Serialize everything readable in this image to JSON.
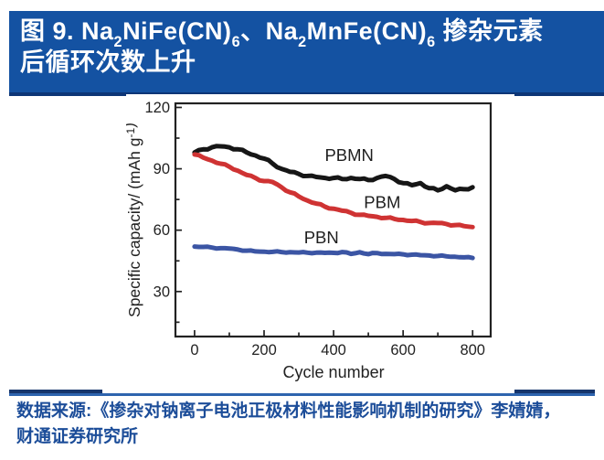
{
  "page": {
    "background": "#FFFFFF"
  },
  "header": {
    "bg_color": "#1452A2",
    "shadow_color": "#0D3576",
    "text_color": "#FFFFFF",
    "title_line1_segments": [
      {
        "t": "图 9. Na"
      },
      {
        "t": "2",
        "sub": true
      },
      {
        "t": "NiFe(CN)"
      },
      {
        "t": "6",
        "sub": true
      },
      {
        "t": "、Na"
      },
      {
        "t": "2",
        "sub": true
      },
      {
        "t": "MnFe(CN)"
      },
      {
        "t": "6",
        "sub": true
      },
      {
        "t": " 掺杂元素"
      }
    ],
    "title_line2": "后循环次数上升"
  },
  "chart_data": {
    "type": "line",
    "xlabel": "Cycle number",
    "ylabel_segments": [
      {
        "t": "Specific capacity/ (mAh g"
      },
      {
        "t": "-1",
        "sup": true
      },
      {
        "t": ")"
      }
    ],
    "xlim": [
      -55,
      852
    ],
    "ylim": [
      8,
      122
    ],
    "x_ticks_major": [
      0,
      200,
      400,
      600,
      800
    ],
    "x_ticks_minor": [
      100,
      300,
      500,
      700
    ],
    "y_ticks_major": [
      120,
      90,
      60,
      30
    ],
    "y_ticks_minor": [
      105,
      75,
      45,
      15
    ],
    "grid": false,
    "legend_position": "inline-labels",
    "axis_color": "#222222",
    "x": [
      0,
      25,
      50,
      75,
      100,
      125,
      150,
      175,
      200,
      225,
      250,
      275,
      300,
      325,
      350,
      375,
      400,
      425,
      450,
      475,
      500,
      525,
      550,
      575,
      600,
      625,
      650,
      675,
      700,
      725,
      750,
      775,
      800
    ],
    "series": [
      {
        "name": "PBMN",
        "color": "#161616",
        "label_x": 445,
        "label_y": 96.5,
        "values": [
          98,
          99.5,
          100.5,
          101,
          100.5,
          99.5,
          98,
          96.5,
          95,
          92.5,
          90,
          88.5,
          87.5,
          86.5,
          86,
          85.5,
          85.5,
          85,
          85.5,
          85,
          84.5,
          85.5,
          86.5,
          85,
          83,
          82,
          83,
          80.5,
          79.5,
          81.5,
          79.5,
          80,
          81
        ]
      },
      {
        "name": "PBM",
        "color": "#CF3333",
        "label_x": 540,
        "label_y": 73.5,
        "values": [
          97,
          95.5,
          94,
          92.5,
          91,
          89,
          87,
          85.5,
          84,
          83.5,
          81,
          78.5,
          76.5,
          74.5,
          73,
          71.5,
          70.5,
          69.5,
          68.5,
          67.5,
          67,
          66.5,
          66,
          65.5,
          65,
          64.5,
          64,
          63.5,
          63.5,
          63,
          62.5,
          62,
          61.5
        ]
      },
      {
        "name": "PBN",
        "color": "#3B55A4",
        "label_x": 365,
        "label_y": 56.3,
        "values": [
          52,
          51.8,
          51.5,
          51.2,
          51,
          50.5,
          50,
          49.6,
          49.5,
          49.4,
          49.3,
          49.2,
          49.1,
          49,
          49,
          48.9,
          48.9,
          49.3,
          48.4,
          49.2,
          48.3,
          48.8,
          48.4,
          48.3,
          48.2,
          48,
          47.8,
          47.6,
          47.4,
          47.2,
          47,
          46.7,
          46.4
        ]
      }
    ]
  },
  "source": {
    "line1": "数据来源:《掺杂对钠离子电池正极材料性能影响机制的研究》李婧婧，",
    "line2": "财通证券研究所",
    "text_color": "#1C4D99",
    "rule_color": "#2E64AE",
    "segment_color": "#16356B"
  }
}
